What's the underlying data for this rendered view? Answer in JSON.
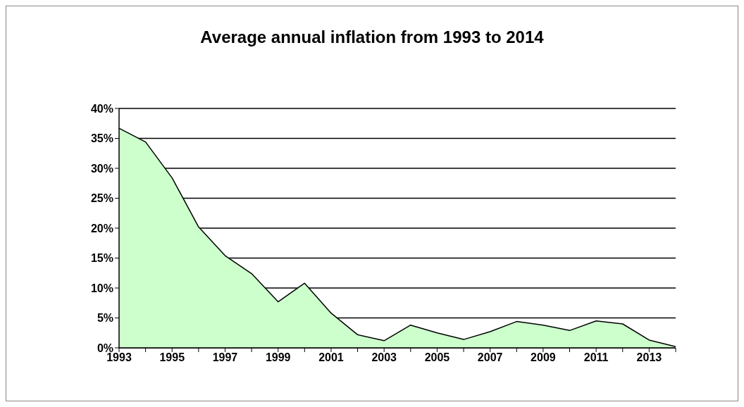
{
  "chart_data": {
    "type": "area",
    "title": "Average annual inflation from 1993 to 2014",
    "categories": [
      "1993",
      null,
      "1995",
      null,
      "1997",
      null,
      "1999",
      null,
      "2001",
      null,
      "2003",
      null,
      "2005",
      null,
      "2007",
      null,
      "2009",
      null,
      "2011",
      null,
      "2013",
      null
    ],
    "series": [
      {
        "color": "#ccffcc",
        "values": [
          36.7,
          34.4,
          28.4,
          20.2,
          15.4,
          12.4,
          7.7,
          10.8,
          5.8,
          2.2,
          1.2,
          3.8,
          2.5,
          1.4,
          2.7,
          4.4,
          3.8,
          2.9,
          4.5,
          4.0,
          1.3,
          0.2
        ]
      }
    ],
    "ylim": [
      0,
      40
    ],
    "yticks": [
      {
        "value": 0,
        "label": "0%"
      },
      {
        "value": 5,
        "label": "5%"
      },
      {
        "value": 10,
        "label": "10%"
      },
      {
        "value": 15,
        "label": "15%"
      },
      {
        "value": 20,
        "label": "20%"
      },
      {
        "value": 25,
        "label": "25%"
      },
      {
        "value": 30,
        "label": "30%"
      },
      {
        "value": 35,
        "label": "35%"
      },
      {
        "value": 40,
        "label": "40%"
      }
    ],
    "grid": "y",
    "legend": false
  }
}
